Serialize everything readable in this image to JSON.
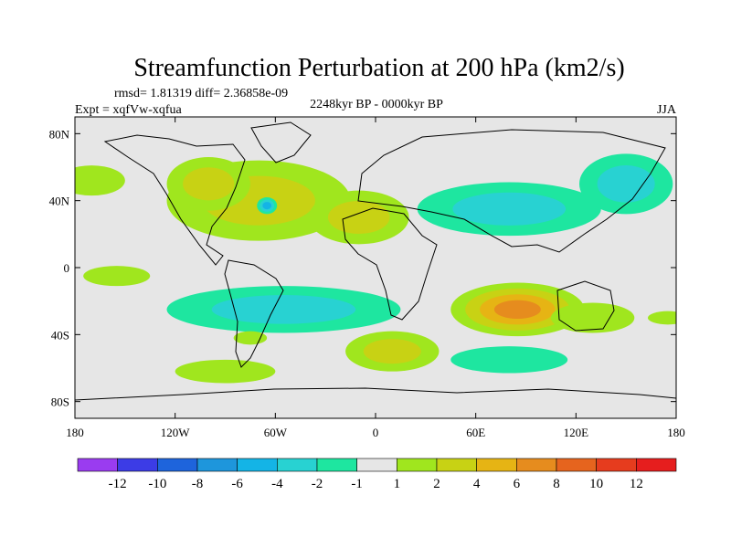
{
  "chart_data": {
    "type": "heatmap",
    "title": "Streamfunction Perturbation at 200 hPa (km2/s)",
    "stats_line": "rmsd= 1.81319 diff= 2.36858e-09",
    "expt_label": "Expt = xqfVw-xqfua",
    "period_label": "2248kyr BP - 0000kyr BP",
    "season_label": "JJA",
    "x_ticks": [
      {
        "value": -180,
        "label": "180"
      },
      {
        "value": -120,
        "label": "120W"
      },
      {
        "value": -60,
        "label": "60W"
      },
      {
        "value": 0,
        "label": "0"
      },
      {
        "value": 60,
        "label": "60E"
      },
      {
        "value": 120,
        "label": "120E"
      },
      {
        "value": 180,
        "label": "180"
      }
    ],
    "y_ticks": [
      {
        "value": 80,
        "label": "80N"
      },
      {
        "value": 40,
        "label": "40N"
      },
      {
        "value": 0,
        "label": "0"
      },
      {
        "value": -40,
        "label": "40S"
      },
      {
        "value": -80,
        "label": "80S"
      }
    ],
    "xlim": [
      -180,
      180
    ],
    "ylim": [
      -90,
      90
    ],
    "colorbar": {
      "levels": [
        "-12",
        "-10",
        "-8",
        "-6",
        "-4",
        "-2",
        "-1",
        "1",
        "2",
        "4",
        "6",
        "8",
        "10",
        "12"
      ],
      "colors": [
        "#9a3cf0",
        "#3c3ce6",
        "#1e64dc",
        "#1e96dc",
        "#14b4e6",
        "#28d2d2",
        "#1ee6a0",
        "#e6e6e6",
        "#a0e61e",
        "#c8d214",
        "#e6b414",
        "#e68c1e",
        "#e6641e",
        "#e63c1e",
        "#e61e1e"
      ]
    },
    "anomalies": [
      {
        "name": "north-atlantic-positive",
        "lon": -70,
        "lat": 40,
        "rlon": 55,
        "rlat": 24,
        "value": 2.5
      },
      {
        "name": "north-africa-positive",
        "lon": -10,
        "lat": 30,
        "rlon": 30,
        "rlat": 16,
        "value": 2.2
      },
      {
        "name": "north-america-positive",
        "lon": -100,
        "lat": 50,
        "rlon": 25,
        "rlat": 16,
        "value": 2
      },
      {
        "name": "north-pacific-east-positive",
        "lon": -170,
        "lat": 52,
        "rlon": 20,
        "rlat": 9,
        "value": 1.6
      },
      {
        "name": "east-pacific-positive",
        "lon": -155,
        "lat": -5,
        "rlon": 20,
        "rlat": 6,
        "value": 1.5
      },
      {
        "name": "asia-negative",
        "lon": 80,
        "lat": 35,
        "rlon": 55,
        "rlat": 16,
        "value": -2.5
      },
      {
        "name": "northwest-pacific-negative",
        "lon": 150,
        "lat": 50,
        "rlon": 28,
        "rlat": 18,
        "value": -2.2
      },
      {
        "name": "south-atlantic-negative",
        "lon": -55,
        "lat": -25,
        "rlon": 70,
        "rlat": 14,
        "value": -3.5
      },
      {
        "name": "indian-ocean-positive",
        "lon": 85,
        "lat": -25,
        "rlon": 40,
        "rlat": 16,
        "value": 7.5
      },
      {
        "name": "southern-ocean-east-positive",
        "lon": 130,
        "lat": -30,
        "rlon": 25,
        "rlat": 9,
        "value": 1.8
      },
      {
        "name": "south-atlantic-positive",
        "lon": 10,
        "lat": -50,
        "rlon": 28,
        "rlat": 12,
        "value": 2.5
      },
      {
        "name": "southern-indian-negative",
        "lon": 80,
        "lat": -55,
        "rlon": 35,
        "rlat": 8,
        "value": -1.3
      },
      {
        "name": "south-pacific-positive",
        "lon": -90,
        "lat": -62,
        "rlon": 30,
        "rlat": 7,
        "value": 1.5
      },
      {
        "name": "patagonia-positive",
        "lon": -75,
        "lat": -42,
        "rlon": 10,
        "rlat": 4,
        "value": 1.3
      },
      {
        "name": "tropical-west-pacific-positive",
        "lon": 175,
        "lat": -30,
        "rlon": 12,
        "rlat": 4,
        "value": 1.3
      },
      {
        "name": "north-atlantic-center-negative",
        "lon": -65,
        "lat": 37,
        "rlon": 6,
        "rlat": 5,
        "value": -4
      }
    ]
  }
}
